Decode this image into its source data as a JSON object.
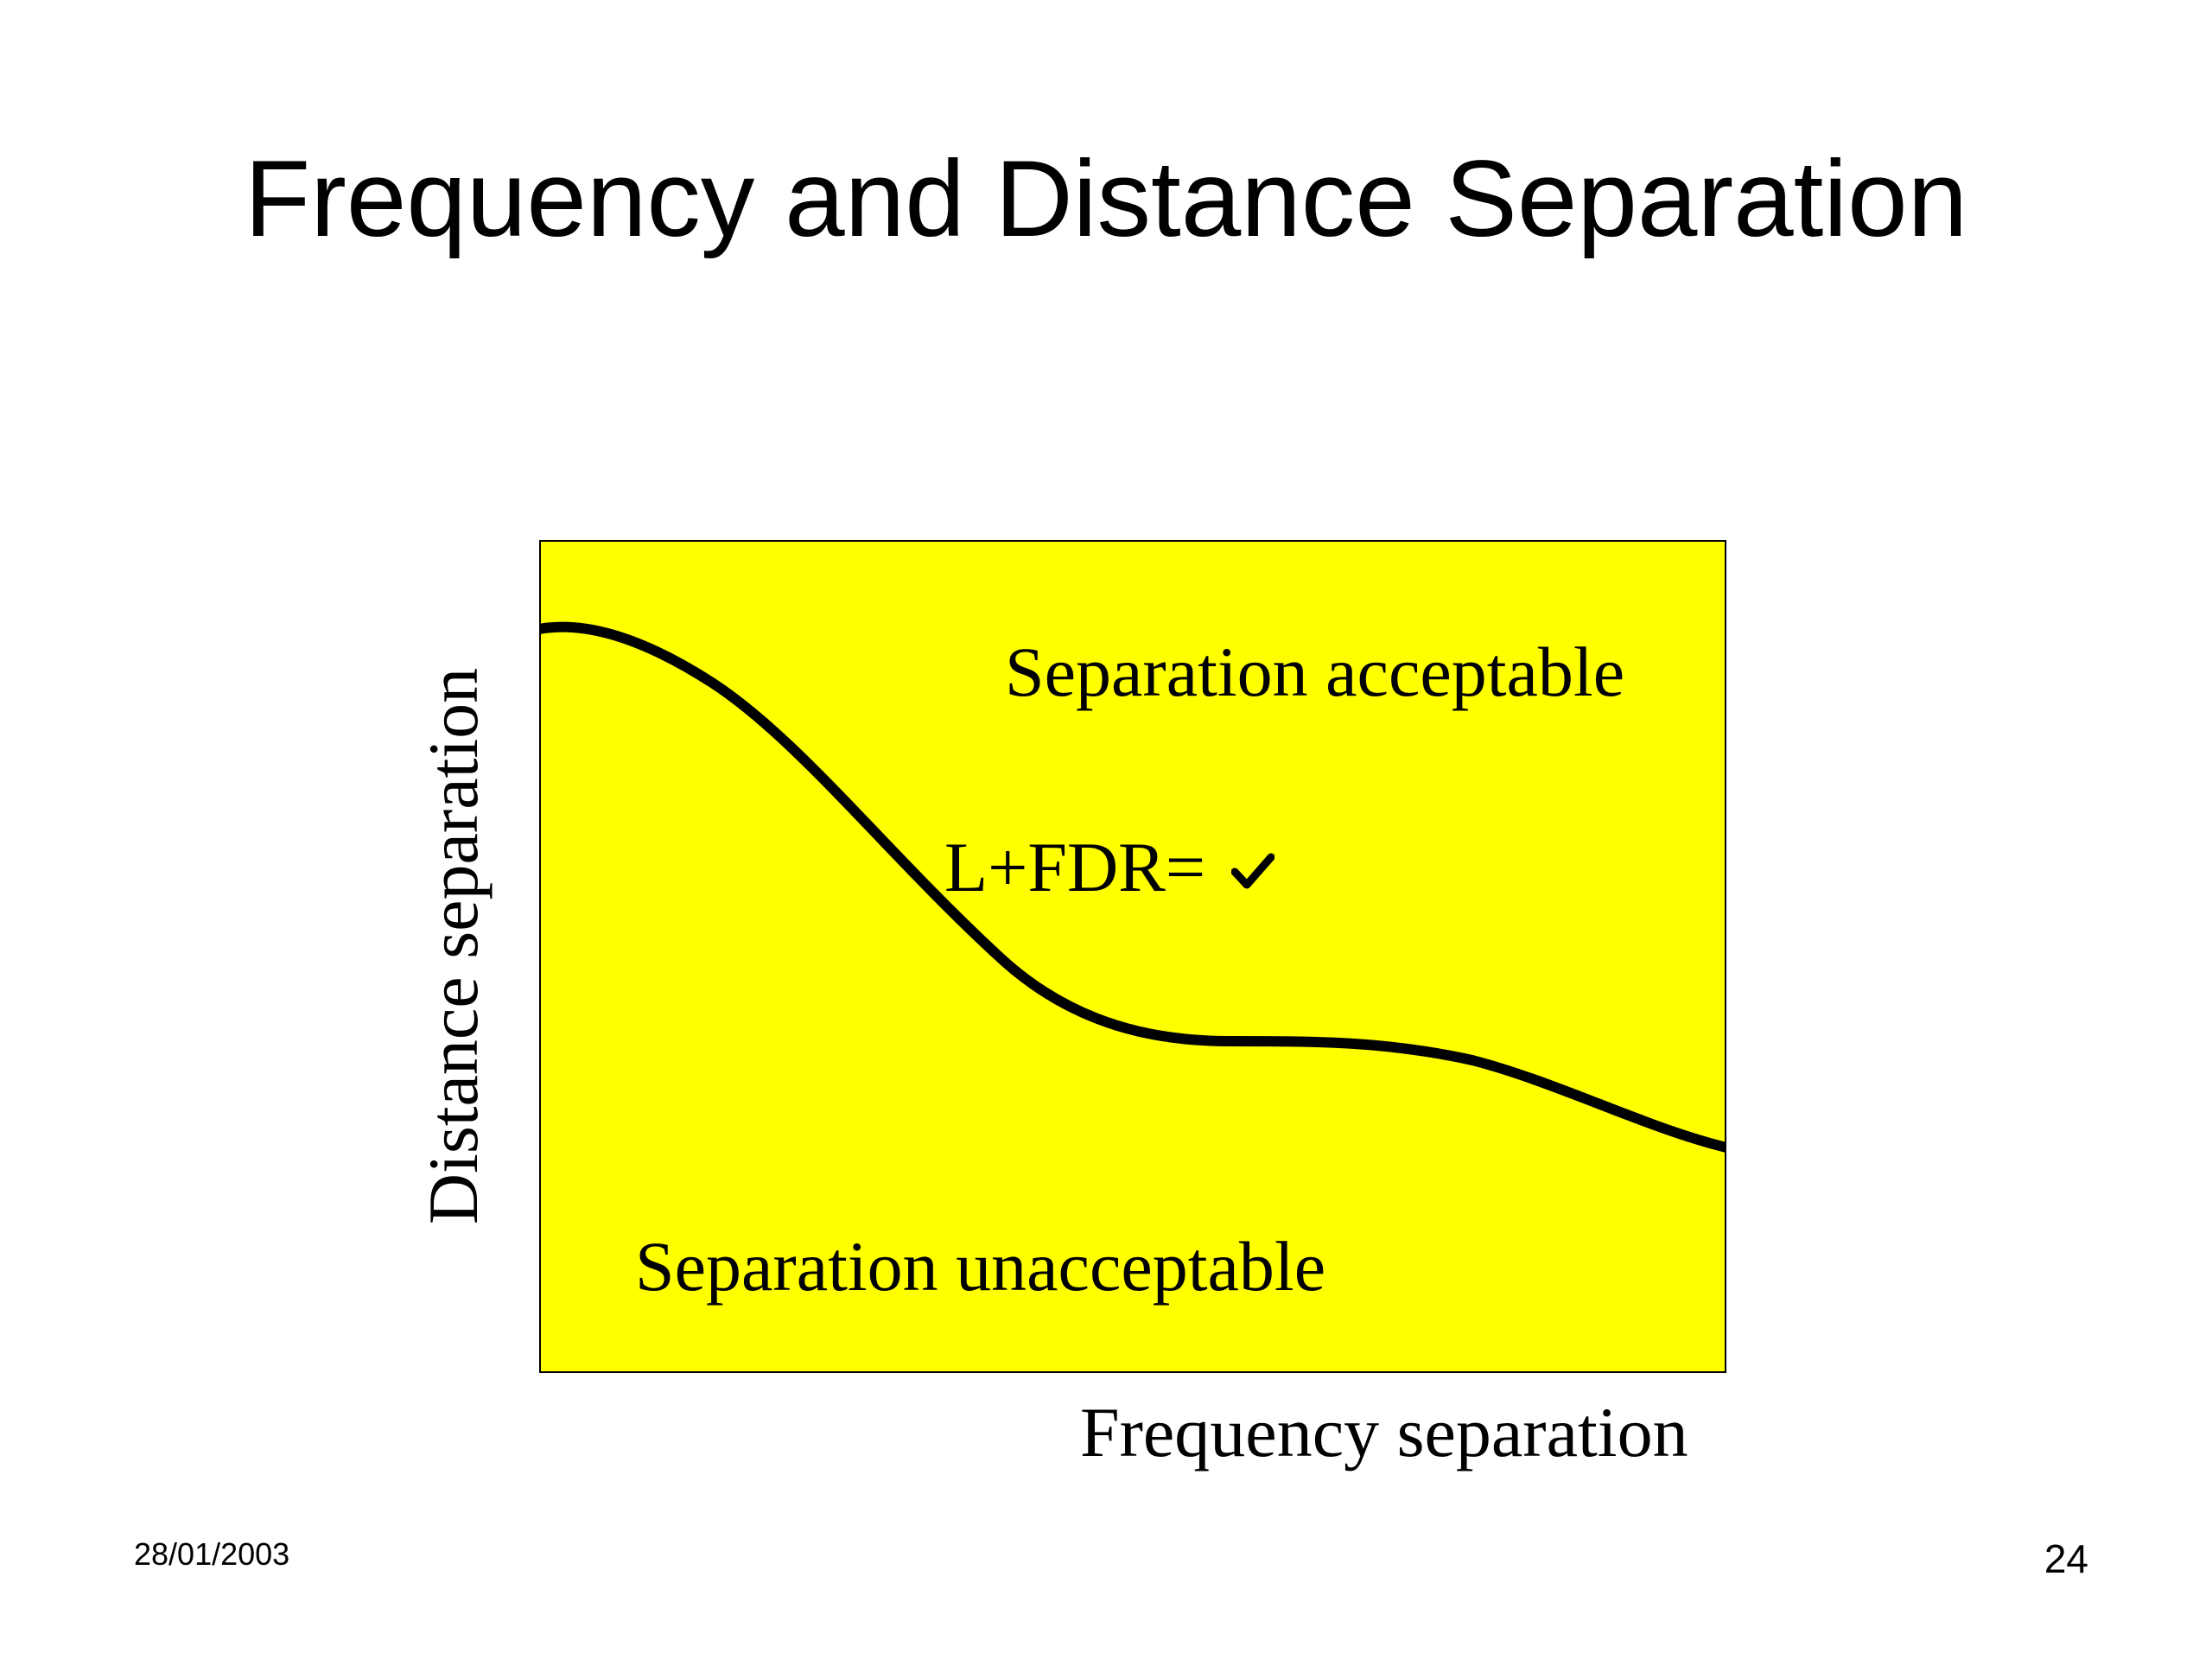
{
  "slide": {
    "title": "Frequency and Distance Separation",
    "date": "28/01/2003",
    "page_number": "24"
  },
  "diagram": {
    "region_fill_color": "#ffff00",
    "curve_color": "#000000",
    "x_axis_label": "Frequency separation",
    "y_axis_label": "Distance separation",
    "region_above_label": "Separation acceptable",
    "region_below_label": "Separation unacceptable",
    "curve_label": "L+FDR=",
    "curve_label_icon": "check-mark-icon"
  }
}
